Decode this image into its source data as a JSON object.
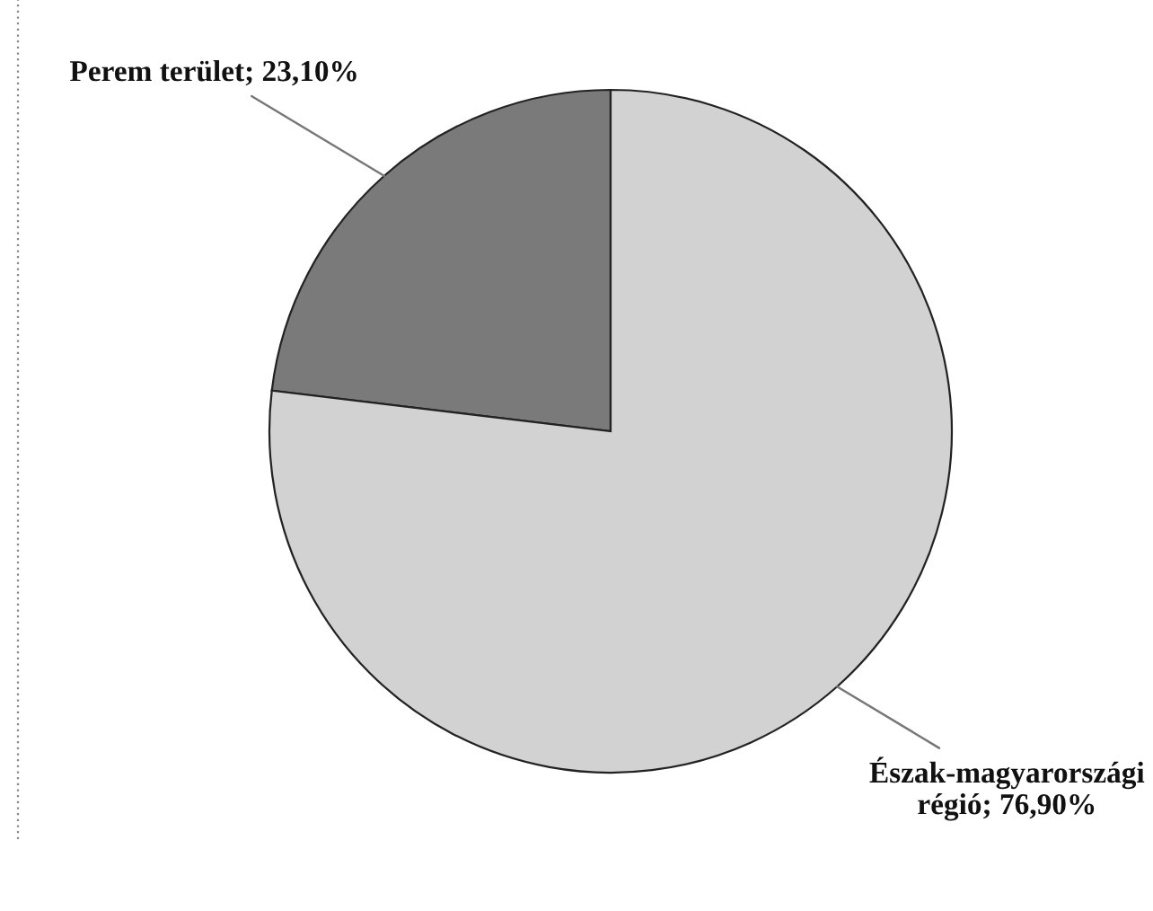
{
  "chart_data": {
    "type": "pie",
    "categories": [
      "Perem terület",
      "Észak-magyarországi régió"
    ],
    "values": [
      23.1,
      76.9
    ],
    "value_labels": [
      "23,10%",
      "76,90%"
    ],
    "colors": [
      "#7a7a7a",
      "#d2d2d2"
    ],
    "legend": false
  }
}
